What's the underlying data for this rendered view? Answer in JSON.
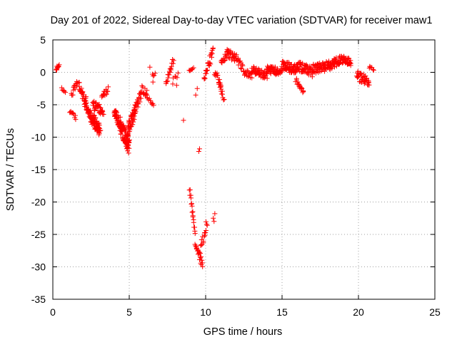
{
  "chart_data": {
    "type": "scatter",
    "title": "Day 201 of 2022, Sidereal Day-to-day VTEC variation (SDTVAR) for receiver maw1",
    "xlabel": "GPS time / hours",
    "ylabel": "SDTVAR / TECUs",
    "xlim": [
      0,
      25
    ],
    "ylim": [
      -35,
      5
    ],
    "xticks": [
      0,
      5,
      10,
      15,
      20,
      25
    ],
    "yticks": [
      5,
      0,
      -5,
      -10,
      -15,
      -20,
      -25,
      -30,
      -35
    ],
    "xtick_labels": [
      "0",
      "5",
      "10",
      "15",
      "20",
      "25"
    ],
    "ytick_labels": [
      "5",
      "0",
      "-5",
      "-10",
      "-15",
      "-20",
      "-25",
      "-30",
      "-35"
    ],
    "grid": true,
    "marker": "+",
    "color": "#ff0000",
    "segments": [
      {
        "x0": 0.2,
        "x1": 0.4,
        "y0": 0.5,
        "y1": 1.0,
        "spread": 0.5,
        "n": 12
      },
      {
        "x0": 0.6,
        "x1": 0.8,
        "y0": -2.5,
        "y1": -3.0,
        "spread": 0.3,
        "n": 6
      },
      {
        "x0": 1.1,
        "x1": 1.5,
        "y0": -6.0,
        "y1": -7.0,
        "spread": 0.6,
        "n": 10
      },
      {
        "x0": 1.2,
        "x1": 1.6,
        "y0": -3.5,
        "y1": -1.5,
        "spread": 1.0,
        "n": 14
      },
      {
        "x0": 1.7,
        "x1": 2.2,
        "y0": -2.0,
        "y1": -4.5,
        "spread": 1.5,
        "n": 30
      },
      {
        "x0": 2.1,
        "x1": 2.6,
        "y0": -4.5,
        "y1": -7.5,
        "spread": 1.5,
        "n": 30
      },
      {
        "x0": 2.5,
        "x1": 3.1,
        "y0": -7.0,
        "y1": -9.0,
        "spread": 2.0,
        "n": 60
      },
      {
        "x0": 2.6,
        "x1": 3.3,
        "y0": -5.0,
        "y1": -6.0,
        "spread": 1.5,
        "n": 35
      },
      {
        "x0": 3.2,
        "x1": 3.6,
        "y0": -4.0,
        "y1": -2.5,
        "spread": 1.0,
        "n": 15
      },
      {
        "x0": 4.0,
        "x1": 4.5,
        "y0": -6.0,
        "y1": -8.5,
        "spread": 1.5,
        "n": 45
      },
      {
        "x0": 4.4,
        "x1": 5.0,
        "y0": -8.0,
        "y1": -11.5,
        "spread": 2.5,
        "n": 90
      },
      {
        "x0": 4.9,
        "x1": 5.4,
        "y0": -9.0,
        "y1": -6.0,
        "spread": 2.0,
        "n": 45
      },
      {
        "x0": 5.4,
        "x1": 5.8,
        "y0": -5.5,
        "y1": -3.5,
        "spread": 1.5,
        "n": 20
      },
      {
        "x0": 5.8,
        "x1": 6.2,
        "y0": -2.5,
        "y1": -3.5,
        "spread": 1.2,
        "n": 14
      },
      {
        "x0": 6.2,
        "x1": 6.6,
        "y0": -4.0,
        "y1": -5.0,
        "spread": 0.5,
        "n": 8
      },
      {
        "x0": 6.5,
        "x1": 6.7,
        "y0": -0.5,
        "y1": -0.2,
        "spread": 0.6,
        "n": 4
      },
      {
        "x0": 7.4,
        "x1": 7.9,
        "y0": -1.5,
        "y1": 2.0,
        "spread": 1.0,
        "n": 18
      },
      {
        "x0": 7.9,
        "x1": 8.2,
        "y0": -0.8,
        "y1": -0.3,
        "spread": 0.8,
        "n": 5
      },
      {
        "x0": 8.9,
        "x1": 9.2,
        "y0": 0.3,
        "y1": 0.8,
        "spread": 0.4,
        "n": 6
      },
      {
        "x0": 8.95,
        "x1": 9.3,
        "y0": -18.0,
        "y1": -25.0,
        "spread": 0.6,
        "n": 18
      },
      {
        "x0": 9.3,
        "x1": 9.8,
        "y0": -26.5,
        "y1": -29.5,
        "spread": 1.5,
        "n": 22
      },
      {
        "x0": 9.7,
        "x1": 10.1,
        "y0": -27.0,
        "y1": -23.0,
        "spread": 1.5,
        "n": 16
      },
      {
        "x0": 9.9,
        "x1": 10.5,
        "y0": -1.0,
        "y1": 3.5,
        "spread": 1.8,
        "n": 24
      },
      {
        "x0": 10.6,
        "x1": 11.0,
        "y0": 0.0,
        "y1": -2.5,
        "spread": 1.5,
        "n": 16
      },
      {
        "x0": 10.9,
        "x1": 11.2,
        "y0": -2.0,
        "y1": -4.0,
        "spread": 1.5,
        "n": 12
      },
      {
        "x0": 11.0,
        "x1": 11.5,
        "y0": 1.5,
        "y1": 3.0,
        "spread": 1.0,
        "n": 18
      },
      {
        "x0": 11.4,
        "x1": 12.0,
        "y0": 3.0,
        "y1": 2.0,
        "spread": 1.5,
        "n": 24
      },
      {
        "x0": 12.0,
        "x1": 12.5,
        "y0": 2.0,
        "y1": 0.5,
        "spread": 1.0,
        "n": 15
      },
      {
        "x0": 12.5,
        "x1": 13.0,
        "y0": 0.0,
        "y1": -0.5,
        "spread": 1.0,
        "n": 16
      },
      {
        "x0": 13.0,
        "x1": 14.0,
        "y0": 0.5,
        "y1": -0.5,
        "spread": 1.2,
        "n": 50
      },
      {
        "x0": 14.0,
        "x1": 15.0,
        "y0": 0.5,
        "y1": 0.0,
        "spread": 1.2,
        "n": 55
      },
      {
        "x0": 15.0,
        "x1": 16.0,
        "y0": 1.0,
        "y1": 0.5,
        "spread": 1.5,
        "n": 60
      },
      {
        "x0": 15.9,
        "x1": 16.4,
        "y0": -1.0,
        "y1": -3.0,
        "spread": 1.0,
        "n": 18
      },
      {
        "x0": 16.0,
        "x1": 17.0,
        "y0": 1.0,
        "y1": 0.0,
        "spread": 1.5,
        "n": 55
      },
      {
        "x0": 17.0,
        "x1": 18.0,
        "y0": 0.5,
        "y1": 1.0,
        "spread": 1.5,
        "n": 55
      },
      {
        "x0": 18.0,
        "x1": 19.0,
        "y0": 1.0,
        "y1": 2.0,
        "spread": 1.5,
        "n": 55
      },
      {
        "x0": 19.0,
        "x1": 19.5,
        "y0": 2.0,
        "y1": 1.5,
        "spread": 1.2,
        "n": 30
      },
      {
        "x0": 19.9,
        "x1": 20.7,
        "y0": -0.5,
        "y1": -1.5,
        "spread": 1.5,
        "n": 40
      },
      {
        "x0": 20.7,
        "x1": 21.0,
        "y0": 0.8,
        "y1": 0.3,
        "spread": 0.5,
        "n": 6
      }
    ],
    "points": [
      [
        8.55,
        -7.4
      ],
      [
        9.35,
        -3.5
      ],
      [
        9.45,
        -2.5
      ],
      [
        9.55,
        -12.2
      ],
      [
        9.6,
        -11.8
      ],
      [
        10.5,
        -22.5
      ],
      [
        10.55,
        -23.0
      ],
      [
        10.6,
        -21.8
      ],
      [
        7.85,
        -1.8
      ],
      [
        8.1,
        -2.0
      ],
      [
        6.35,
        0.8
      ],
      [
        6.55,
        -1.5
      ]
    ]
  }
}
